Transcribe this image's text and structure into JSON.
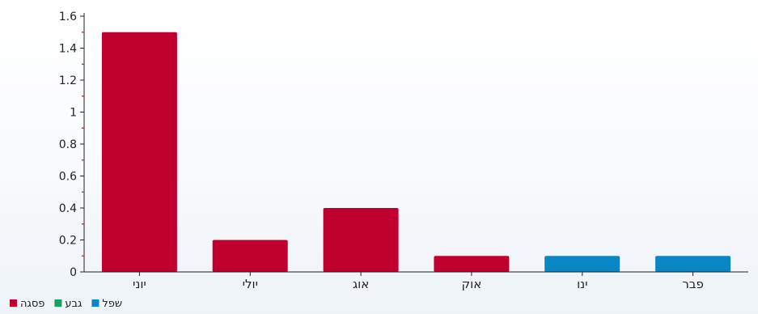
{
  "chart_data": {
    "type": "bar",
    "title": "",
    "xlabel": "",
    "ylabel": "",
    "categories": [
      "יוני",
      "יולי",
      "אוג",
      "אוק",
      "ינו",
      "פבר"
    ],
    "values": [
      1.5,
      0.2,
      0.4,
      0.1,
      0.1,
      0.1
    ],
    "bar_series": [
      "פסגה",
      "פסגה",
      "פסגה",
      "פסגה",
      "שפל",
      "שפל"
    ],
    "ylim": [
      0,
      1.6
    ],
    "yticks": [
      0,
      0.2,
      0.4,
      0.6,
      0.8,
      1,
      1.2,
      1.4,
      1.6
    ],
    "ytick_labels": [
      "0",
      "0.2",
      "0.4",
      "0.6",
      "0.8",
      "1",
      "1.2",
      "1.4",
      "1.6"
    ],
    "grid": false,
    "legend": {
      "placement": "bottom-left",
      "entries": [
        {
          "name": "פסגה",
          "color": "#c0002f"
        },
        {
          "name": "גבע",
          "color": "#1aa15f"
        },
        {
          "name": "שפל",
          "color": "#0a86c4"
        }
      ]
    },
    "colors": {
      "פסגה": "#c0002f",
      "גבע": "#1aa15f",
      "שפל": "#0a86c4",
      "axis": "#222222",
      "minor_tick": "#d22b2b"
    }
  }
}
